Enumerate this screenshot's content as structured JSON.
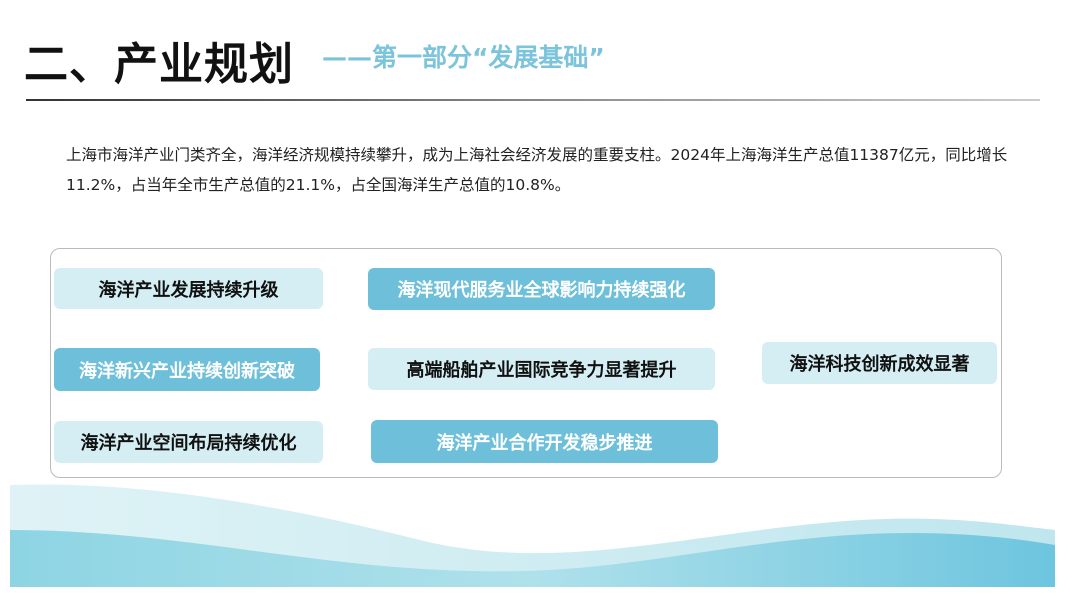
{
  "header": {
    "title": "二、产业规划",
    "subtitle": "——第一部分“发展基础”"
  },
  "intro": "上海市海洋产业门类齐全，海洋经济规模持续攀升，成为上海社会经济发展的重要支柱。2024年上海海洋生产总值11387亿元，同比增长11.2%，占当年全市生产总值的21.1%，占全国海洋生产总值的10.8%。",
  "colors": {
    "light_box": "#d4eef4",
    "dark_box": "#6ebfd9",
    "accent": "#7cc3dc"
  },
  "items": [
    {
      "label": "海洋产业发展持续升级",
      "style": "light"
    },
    {
      "label": "海洋现代服务业全球影响力持续强化",
      "style": "dark"
    },
    {
      "label": "海洋新兴产业持续创新突破",
      "style": "dark"
    },
    {
      "label": "高端船舶产业国际竞争力显著提升",
      "style": "light"
    },
    {
      "label": "海洋科技创新成效显著",
      "style": "light"
    },
    {
      "label": "海洋产业空间布局持续优化",
      "style": "light"
    },
    {
      "label": "海洋产业合作开发稳步推进",
      "style": "dark"
    }
  ]
}
